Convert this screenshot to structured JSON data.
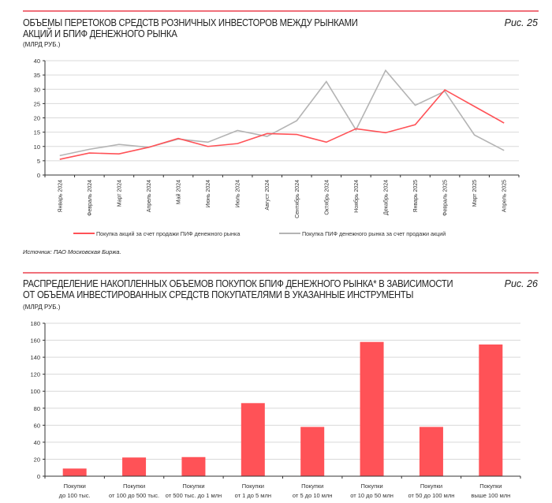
{
  "charts_meta": [
    {
      "title_line1": "ОБЪЕМЫ ПЕРЕТОКОВ СРЕДСТВ РОЗНИЧНЫХ ИНВЕСТОРОВ МЕЖДУ РЫНКАМИ",
      "title_line2": "АКЦИЙ И БПИФ ДЕНЕЖНОГО РЫНКА",
      "figure": "Рис. 25",
      "unit": "(МЛРД РУБ.)",
      "source": "Источник: ПАО Московская Биржа."
    },
    {
      "title_line1": "РАСПРЕДЕЛЕНИЕ НАКОПЛЕННЫХ ОБЪЕМОВ ПОКУПОК БПИФ ДЕНЕЖНОГО РЫНКА* В ЗАВИСИМОСТИ",
      "title_line2": "ОТ ОБЪЕМА ИНВЕСТИРОВАННЫХ СРЕДСТВ ПОКУПАТЕЛЯМИ В УКАЗАННЫЕ ИНСТРУМЕНТЫ",
      "figure": "Рис. 26",
      "unit": "(МЛРД РУБ.)"
    }
  ],
  "colors": {
    "accent": "#ff5257",
    "gray": "#b4b4b4",
    "rule": "#f0707a"
  },
  "chart_data": [
    {
      "type": "line",
      "title": "ОБЪЕМЫ ПЕРЕТОКОВ СРЕДСТВ РОЗНИЧНЫХ ИНВЕСТОРОВ МЕЖДУ РЫНКАМИ АКЦИЙ И БПИФ ДЕНЕЖНОГО РЫНКА",
      "ylabel": "(МЛРД РУБ.)",
      "ylim": [
        0,
        40
      ],
      "yticks": [
        0,
        5,
        10,
        15,
        20,
        25,
        30,
        35,
        40
      ],
      "grid": true,
      "legend": "bottom",
      "categories": [
        "Январь 2024",
        "Февраль 2024",
        "Март 2024",
        "Апрель 2024",
        "Май 2024",
        "Июнь 2024",
        "Июль 2024",
        "Август 2024",
        "Сентябрь 2024",
        "Октябрь 2024",
        "Ноябрь 2024",
        "Декабрь 2024",
        "Январь 2025",
        "Февраль 2025",
        "Март 2025",
        "Апрель 2025"
      ],
      "series": [
        {
          "name": "Покупка акций за счет продажи ПИФ денежного рынка",
          "color": "#ff5257",
          "values": [
            5.5,
            7.7,
            7.4,
            9.7,
            12.8,
            10.0,
            11.0,
            14.5,
            14.2,
            11.5,
            16.2,
            14.8,
            17.6,
            29.8,
            24.0,
            18.2
          ]
        },
        {
          "name": "Покупка ПИФ денежного рынка  за счет продажи акций",
          "color": "#b4b4b4",
          "values": [
            6.8,
            9.0,
            10.7,
            9.7,
            12.6,
            11.5,
            15.6,
            13.5,
            19.0,
            32.7,
            15.8,
            36.6,
            24.4,
            29.3,
            14.0,
            8.6
          ]
        }
      ]
    },
    {
      "type": "bar",
      "title": "РАСПРЕДЕЛЕНИЕ НАКОПЛЕННЫХ ОБЪЕМОВ ПОКУПОК БПИФ ДЕНЕЖНОГО РЫНКА* В ЗАВИСИМОСТИ ОТ ОБЪЕМА ИНВЕСТИРОВАННЫХ СРЕДСТВ ПОКУПАТЕЛЯМИ В УКАЗАННЫЕ ИНСТРУМЕНТЫ",
      "ylabel": "(МЛРД РУБ.)",
      "ylim": [
        0,
        180
      ],
      "yticks": [
        0,
        20,
        40,
        60,
        80,
        100,
        120,
        140,
        160,
        180
      ],
      "grid": true,
      "categories": [
        [
          "Покупки",
          "до 100 тыс."
        ],
        [
          "Покупки",
          "от 100 до 500 тыс."
        ],
        [
          "Покупки",
          "от 500 тыс. до 1 млн"
        ],
        [
          "Покупки",
          "от 1 до 5 млн"
        ],
        [
          "Покупки",
          "от 5 до 10 млн"
        ],
        [
          "Покупки",
          "от 10 до 50 млн"
        ],
        [
          "Покупки",
          "от 50 до 100 млн"
        ],
        [
          "Покупки",
          "выше 100 млн"
        ]
      ],
      "values": [
        9,
        22,
        22.5,
        86,
        58,
        158,
        58,
        155
      ],
      "color": "#ff5257"
    }
  ]
}
